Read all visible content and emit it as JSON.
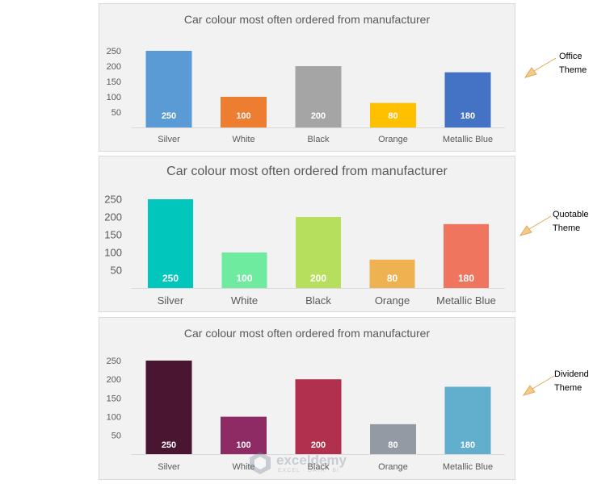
{
  "chart_data": [
    {
      "type": "bar",
      "title": "Car colour most often ordered from manufacturer",
      "categories": [
        "Silver",
        "White",
        "Black",
        "Orange",
        "Metallic Blue"
      ],
      "values": [
        250,
        100,
        200,
        80,
        180
      ],
      "yticks": [
        "250",
        "200",
        "150",
        "100",
        "50"
      ],
      "ylim": [
        0,
        250
      ],
      "colors": [
        "#5b9bd5",
        "#ed7d31",
        "#a5a5a5",
        "#ffc000",
        "#4472c4"
      ],
      "theme": "Office",
      "gridlines": false,
      "legend": false
    },
    {
      "type": "bar",
      "title": "Car colour most often ordered from manufacturer",
      "categories": [
        "Silver",
        "White",
        "Black",
        "Orange",
        "Metallic Blue"
      ],
      "values": [
        250,
        100,
        200,
        80,
        180
      ],
      "yticks": [
        "250",
        "200",
        "150",
        "100",
        "50"
      ],
      "ylim": [
        0,
        250
      ],
      "colors": [
        "#00c6bb",
        "#6feba0",
        "#b6df5e",
        "#efb251",
        "#ef755f"
      ],
      "theme": "Quotable",
      "gridlines": false,
      "legend": false
    },
    {
      "type": "bar",
      "title": "Car colour most often ordered from manufacturer",
      "categories": [
        "Silver",
        "White",
        "Black",
        "Orange",
        "Metallic Blue"
      ],
      "values": [
        250,
        100,
        200,
        80,
        180
      ],
      "yticks": [
        "250",
        "200",
        "150",
        "100",
        "50"
      ],
      "ylim": [
        0,
        250
      ],
      "colors": [
        "#4a1531",
        "#8e2a64",
        "#b0304d",
        "#949aa3",
        "#62aecd"
      ],
      "theme": "Dividend",
      "gridlines": false,
      "legend": false
    }
  ],
  "annotations": [
    {
      "line1": "Office",
      "line2": "Theme"
    },
    {
      "line1": "Quotable",
      "line2": "Theme"
    },
    {
      "line1": "Dividend",
      "line2": "Theme"
    }
  ],
  "watermark": {
    "name": "exceldemy",
    "tagline": "EXCEL · DATA · BI"
  },
  "arrow_color": "#f5c98a"
}
